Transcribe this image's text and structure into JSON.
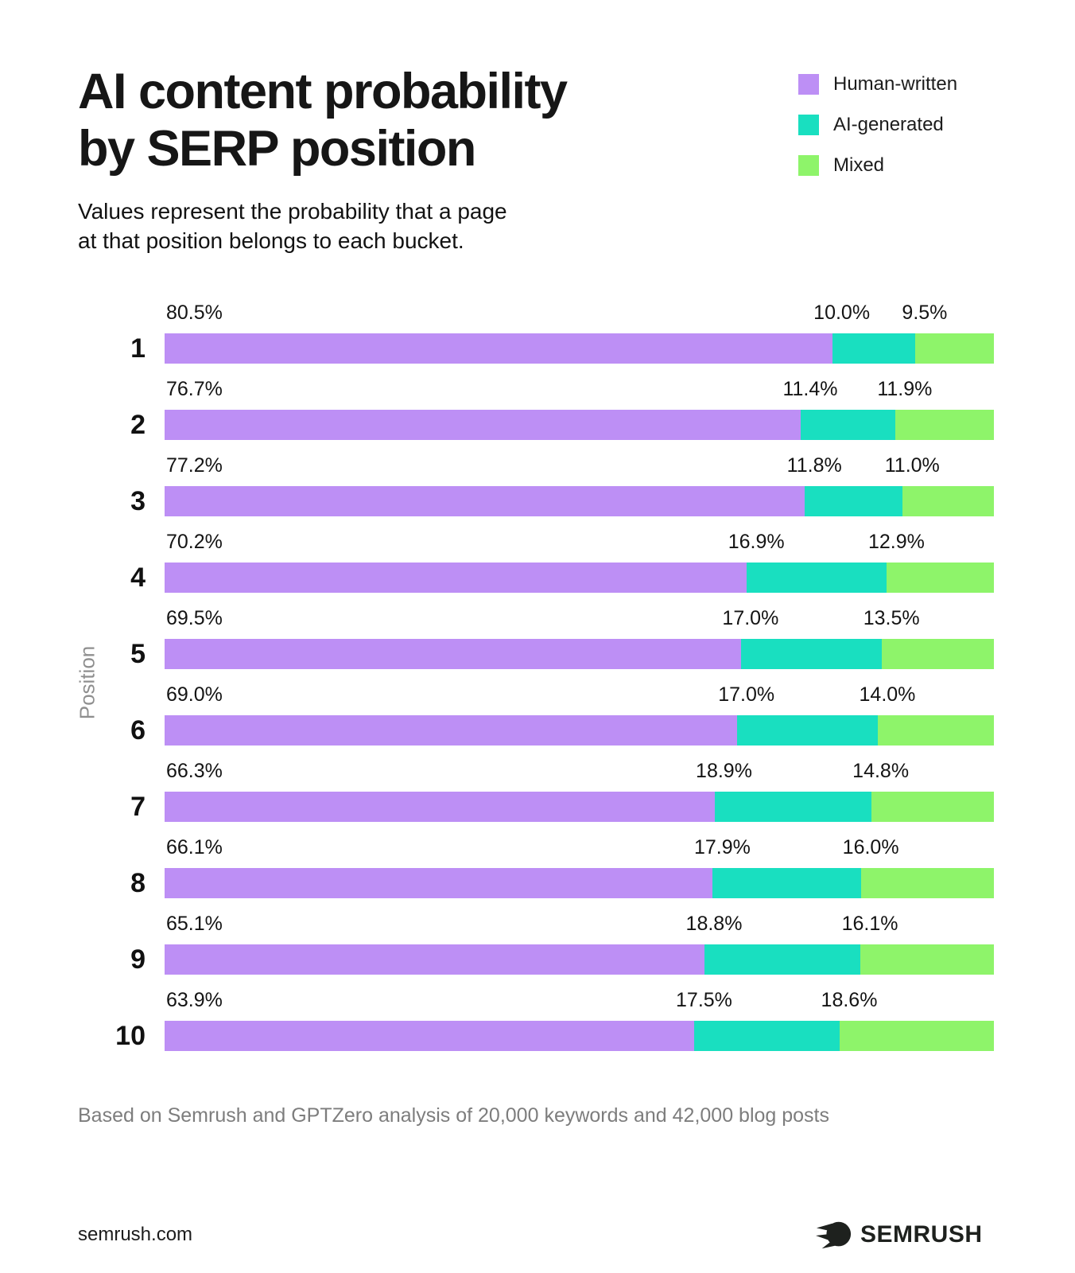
{
  "header": {
    "title_line1": "AI content probability",
    "title_line2": "by SERP position",
    "subtitle_line1": "Values represent the probability that a page",
    "subtitle_line2": "at that position belongs to each bucket."
  },
  "legend": {
    "items": [
      {
        "label": "Human-written",
        "color": "#bd8ff5"
      },
      {
        "label": "AI-generated",
        "color": "#19dfc0"
      },
      {
        "label": "Mixed",
        "color": "#8ef46a"
      }
    ]
  },
  "chart_data": {
    "type": "bar",
    "orientation": "horizontal_stacked",
    "title": "AI content probability by SERP position",
    "ylabel": "Position",
    "xlabel": "",
    "xlim": [
      0,
      100
    ],
    "grid": false,
    "legend_position": "top-right",
    "value_suffix": "%",
    "categories": [
      "1",
      "2",
      "3",
      "4",
      "5",
      "6",
      "7",
      "8",
      "9",
      "10"
    ],
    "series": [
      {
        "name": "Human-written",
        "color": "#bd8ff5",
        "values": [
          80.5,
          76.7,
          77.2,
          70.2,
          69.5,
          69.0,
          66.3,
          66.1,
          65.1,
          63.9
        ]
      },
      {
        "name": "AI-generated",
        "color": "#19dfc0",
        "values": [
          10.0,
          11.4,
          11.8,
          16.9,
          17.0,
          17.0,
          18.9,
          17.9,
          18.8,
          17.5
        ]
      },
      {
        "name": "Mixed",
        "color": "#8ef46a",
        "values": [
          9.5,
          11.9,
          11.0,
          12.9,
          13.5,
          14.0,
          14.8,
          16.0,
          16.1,
          18.6
        ]
      }
    ]
  },
  "footnote": "Based on Semrush and GPTZero analysis of 20,000 keywords and 42,000 blog posts",
  "footer": {
    "website": "semrush.com",
    "brand": "SEMRUSH"
  }
}
